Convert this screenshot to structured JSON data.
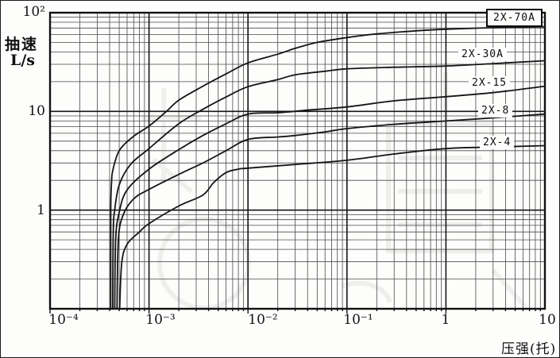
{
  "figure": {
    "y_axis": {
      "title_line1": "抽速",
      "title_line2": "L/s",
      "ticks": [
        "10²",
        "10",
        "1"
      ]
    },
    "x_axis": {
      "title": "压强(托)",
      "ticks": [
        "10⁻⁴",
        "10⁻³",
        "10⁻²",
        "10⁻¹",
        "1",
        "10"
      ]
    },
    "watermark_present": true,
    "watermark_legible": false
  },
  "chart_data": {
    "type": "line",
    "title": "",
    "xlabel": "压强(托)",
    "ylabel": "抽速 L/s",
    "x_scale": "log",
    "y_scale": "log",
    "xlim": [
      0.0001,
      10
    ],
    "ylim": [
      0.1,
      100
    ],
    "grid": "log major and minor gridlines on both axes",
    "legend_position": "inline labels at right side of curves",
    "line_color": "#151515",
    "series": [
      {
        "name": "2X-70A",
        "points": [
          [
            0.00041,
            0.1
          ],
          [
            0.00041,
            0.7
          ],
          [
            0.000412,
            1.3
          ],
          [
            0.000418,
            1.9
          ],
          [
            0.00043,
            2.5
          ],
          [
            0.0005,
            4.0
          ],
          [
            0.0007,
            5.6
          ],
          [
            0.001,
            7.1
          ],
          [
            0.0015,
            10
          ],
          [
            0.002,
            13
          ],
          [
            0.0035,
            18
          ],
          [
            0.006,
            24
          ],
          [
            0.01,
            31
          ],
          [
            0.02,
            38
          ],
          [
            0.03,
            43.5
          ],
          [
            0.05,
            50
          ],
          [
            0.1,
            56
          ],
          [
            0.2,
            61
          ],
          [
            0.5,
            65.5
          ],
          [
            1,
            68
          ],
          [
            3,
            70.5
          ],
          [
            10,
            72
          ]
        ]
      },
      {
        "name": "2X-30A",
        "points": [
          [
            0.00043,
            0.1
          ],
          [
            0.000435,
            0.6
          ],
          [
            0.00045,
            1.0
          ],
          [
            0.0005,
            1.8
          ],
          [
            0.00065,
            2.9
          ],
          [
            0.001,
            4.2
          ],
          [
            0.002,
            7.5
          ],
          [
            0.0035,
            10.5
          ],
          [
            0.006,
            14
          ],
          [
            0.01,
            17.8
          ],
          [
            0.02,
            21
          ],
          [
            0.03,
            23.5
          ],
          [
            0.06,
            25.5
          ],
          [
            0.1,
            27
          ],
          [
            0.3,
            28
          ],
          [
            1,
            28.8
          ],
          [
            3,
            30.5
          ],
          [
            10,
            32.6
          ]
        ]
      },
      {
        "name": "2X-15",
        "points": [
          [
            0.00045,
            0.1
          ],
          [
            0.00046,
            0.5
          ],
          [
            0.0005,
            0.95
          ],
          [
            0.0006,
            1.6
          ],
          [
            0.001,
            2.6
          ],
          [
            0.002,
            4.1
          ],
          [
            0.0035,
            5.7
          ],
          [
            0.006,
            7.5
          ],
          [
            0.01,
            9.4
          ],
          [
            0.02,
            9.7
          ],
          [
            0.04,
            10.3
          ],
          [
            0.1,
            11.1
          ],
          [
            0.3,
            12.8
          ],
          [
            1,
            14.1
          ],
          [
            3,
            15.5
          ],
          [
            10,
            18
          ]
        ]
      },
      {
        "name": "2X-8",
        "points": [
          [
            0.000475,
            0.1
          ],
          [
            0.00049,
            0.5
          ],
          [
            0.00055,
            0.9
          ],
          [
            0.0007,
            1.3
          ],
          [
            0.001,
            1.62
          ],
          [
            0.002,
            2.3
          ],
          [
            0.0035,
            3.0
          ],
          [
            0.006,
            4.0
          ],
          [
            0.01,
            5.2
          ],
          [
            0.02,
            5.5
          ],
          [
            0.03,
            5.7
          ],
          [
            0.06,
            6.2
          ],
          [
            0.1,
            6.7
          ],
          [
            0.3,
            7.4
          ],
          [
            1,
            8.0
          ],
          [
            3,
            8.6
          ],
          [
            10,
            9.4
          ]
        ]
      },
      {
        "name": "2X-4",
        "points": [
          [
            0.000505,
            0.1
          ],
          [
            0.00053,
            0.29
          ],
          [
            0.0006,
            0.45
          ],
          [
            0.0008,
            0.6
          ],
          [
            0.001,
            0.73
          ],
          [
            0.002,
            1.1
          ],
          [
            0.0035,
            1.42
          ],
          [
            0.0045,
            1.9
          ],
          [
            0.006,
            2.4
          ],
          [
            0.008,
            2.6
          ],
          [
            0.01,
            2.66
          ],
          [
            0.03,
            2.9
          ],
          [
            0.1,
            3.2
          ],
          [
            0.3,
            3.7
          ],
          [
            1,
            4.2
          ],
          [
            3,
            4.35
          ],
          [
            10,
            4.5
          ]
        ]
      }
    ]
  }
}
